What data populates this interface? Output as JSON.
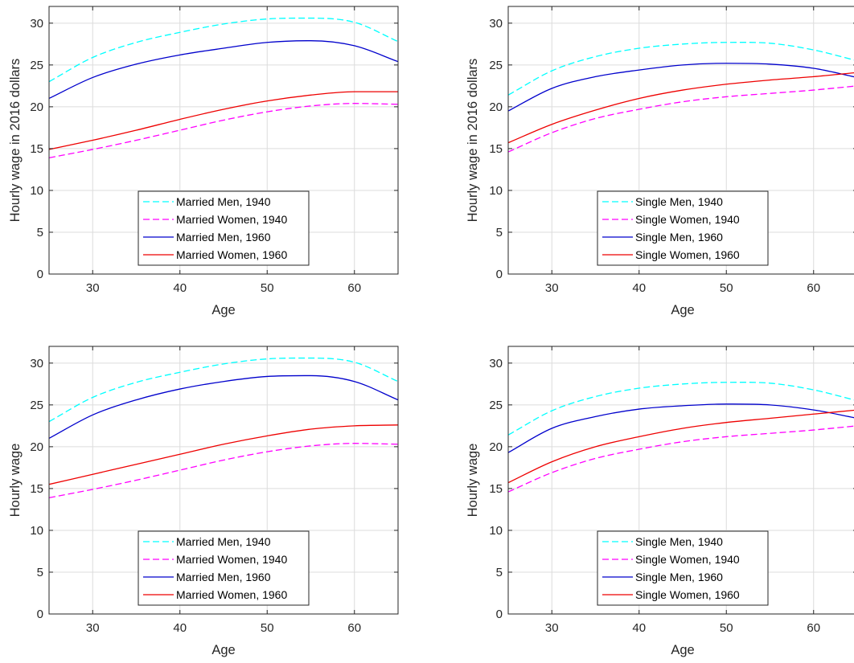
{
  "chart_data": [
    {
      "type": "line",
      "xlabel": "Age",
      "ylabel": "Hourly wage in 2016 dollars",
      "xlim": [
        25,
        65
      ],
      "ylim": [
        0,
        32
      ],
      "xticks": [
        30,
        40,
        50,
        60
      ],
      "yticks": [
        0,
        5,
        10,
        15,
        20,
        25,
        30
      ],
      "grid": true,
      "legend_position": "bottom-center",
      "x": [
        25,
        30,
        35,
        40,
        45,
        50,
        55,
        60,
        65
      ],
      "series": [
        {
          "name": "Married Men, 1940",
          "color": "#00ffff",
          "dash": "dashed",
          "values": [
            23.0,
            25.9,
            27.7,
            28.9,
            29.9,
            30.5,
            30.6,
            30.1,
            27.8
          ]
        },
        {
          "name": "Married Women, 1940",
          "color": "#ff00ff",
          "dash": "dashed",
          "values": [
            13.9,
            14.9,
            16.0,
            17.2,
            18.4,
            19.4,
            20.1,
            20.4,
            20.3
          ]
        },
        {
          "name": "Married Men, 1960",
          "color": "#0000cc",
          "dash": "solid",
          "values": [
            21.0,
            23.5,
            25.1,
            26.2,
            27.0,
            27.7,
            27.9,
            27.3,
            25.4
          ]
        },
        {
          "name": "Married Women, 1960",
          "color": "#ee0000",
          "dash": "solid",
          "values": [
            14.9,
            16.0,
            17.2,
            18.5,
            19.7,
            20.7,
            21.4,
            21.8,
            21.8
          ]
        }
      ]
    },
    {
      "type": "line",
      "xlabel": "Age",
      "ylabel": "Hourly wage in 2016 dollars",
      "xlim": [
        25,
        65
      ],
      "ylim": [
        0,
        32
      ],
      "xticks": [
        30,
        40,
        50,
        60
      ],
      "yticks": [
        0,
        5,
        10,
        15,
        20,
        25,
        30
      ],
      "grid": true,
      "legend_position": "bottom-center",
      "x": [
        25,
        30,
        35,
        40,
        45,
        50,
        55,
        60,
        65
      ],
      "series": [
        {
          "name": "Single Men, 1940",
          "color": "#00ffff",
          "dash": "dashed",
          "values": [
            21.4,
            24.3,
            26.0,
            27.0,
            27.5,
            27.7,
            27.6,
            26.8,
            25.5
          ]
        },
        {
          "name": "Single Women, 1940",
          "color": "#ff00ff",
          "dash": "dashed",
          "values": [
            14.6,
            16.9,
            18.6,
            19.7,
            20.6,
            21.2,
            21.6,
            22.0,
            22.5
          ]
        },
        {
          "name": "Single Men, 1960",
          "color": "#0000cc",
          "dash": "solid",
          "values": [
            19.5,
            22.2,
            23.6,
            24.4,
            25.0,
            25.2,
            25.1,
            24.6,
            23.5
          ]
        },
        {
          "name": "Single Women, 1960",
          "color": "#ee0000",
          "dash": "solid",
          "values": [
            15.7,
            17.9,
            19.6,
            21.0,
            22.0,
            22.7,
            23.2,
            23.6,
            24.1
          ]
        }
      ]
    },
    {
      "type": "line",
      "xlabel": "Age",
      "ylabel": "Hourly wage",
      "xlim": [
        25,
        65
      ],
      "ylim": [
        0,
        32
      ],
      "xticks": [
        30,
        40,
        50,
        60
      ],
      "yticks": [
        0,
        5,
        10,
        15,
        20,
        25,
        30
      ],
      "grid": true,
      "legend_position": "bottom-center",
      "x": [
        25,
        30,
        35,
        40,
        45,
        50,
        55,
        60,
        65
      ],
      "series": [
        {
          "name": "Married Men, 1940",
          "color": "#00ffff",
          "dash": "dashed",
          "values": [
            23.0,
            25.9,
            27.7,
            28.9,
            29.9,
            30.5,
            30.6,
            30.1,
            27.8
          ]
        },
        {
          "name": "Married Women, 1940",
          "color": "#ff00ff",
          "dash": "dashed",
          "values": [
            13.9,
            14.9,
            16.0,
            17.2,
            18.4,
            19.4,
            20.1,
            20.4,
            20.3
          ]
        },
        {
          "name": "Married Men, 1960",
          "color": "#0000cc",
          "dash": "solid",
          "values": [
            21.0,
            23.8,
            25.6,
            26.9,
            27.8,
            28.4,
            28.5,
            27.8,
            25.6
          ]
        },
        {
          "name": "Married Women, 1960",
          "color": "#ee0000",
          "dash": "solid",
          "values": [
            15.5,
            16.7,
            17.9,
            19.1,
            20.3,
            21.3,
            22.1,
            22.5,
            22.6
          ]
        }
      ]
    },
    {
      "type": "line",
      "xlabel": "Age",
      "ylabel": "Hourly wage",
      "xlim": [
        25,
        65
      ],
      "ylim": [
        0,
        32
      ],
      "xticks": [
        30,
        40,
        50,
        60
      ],
      "yticks": [
        0,
        5,
        10,
        15,
        20,
        25,
        30
      ],
      "grid": true,
      "legend_position": "bottom-center",
      "x": [
        25,
        30,
        35,
        40,
        45,
        50,
        55,
        60,
        65
      ],
      "series": [
        {
          "name": "Single Men, 1940",
          "color": "#00ffff",
          "dash": "dashed",
          "values": [
            21.4,
            24.3,
            26.0,
            27.0,
            27.5,
            27.7,
            27.6,
            26.8,
            25.5
          ]
        },
        {
          "name": "Single Women, 1940",
          "color": "#ff00ff",
          "dash": "dashed",
          "values": [
            14.6,
            16.9,
            18.6,
            19.7,
            20.6,
            21.2,
            21.6,
            22.0,
            22.5
          ]
        },
        {
          "name": "Single Men, 1960",
          "color": "#0000cc",
          "dash": "solid",
          "values": [
            19.3,
            22.2,
            23.6,
            24.5,
            24.9,
            25.1,
            25.0,
            24.4,
            23.4
          ]
        },
        {
          "name": "Single Women, 1960",
          "color": "#ee0000",
          "dash": "solid",
          "values": [
            15.7,
            18.2,
            20.0,
            21.2,
            22.2,
            22.9,
            23.4,
            23.9,
            24.4
          ]
        }
      ]
    }
  ]
}
